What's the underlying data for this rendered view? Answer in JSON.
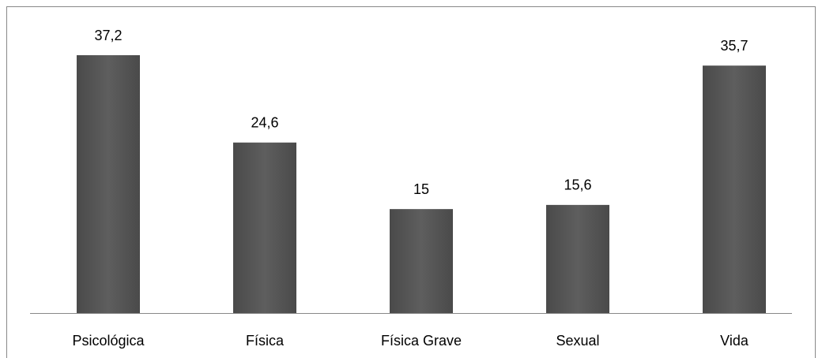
{
  "chart_data": {
    "type": "bar",
    "categories": [
      "Psicológica",
      "Física",
      "Física Grave",
      "Sexual",
      "Vida"
    ],
    "values": [
      37.2,
      24.6,
      15,
      15.6,
      35.7
    ],
    "value_labels": [
      "37,2",
      "24,6",
      "15",
      "15,6",
      "35,7"
    ],
    "color": "#555555"
  }
}
